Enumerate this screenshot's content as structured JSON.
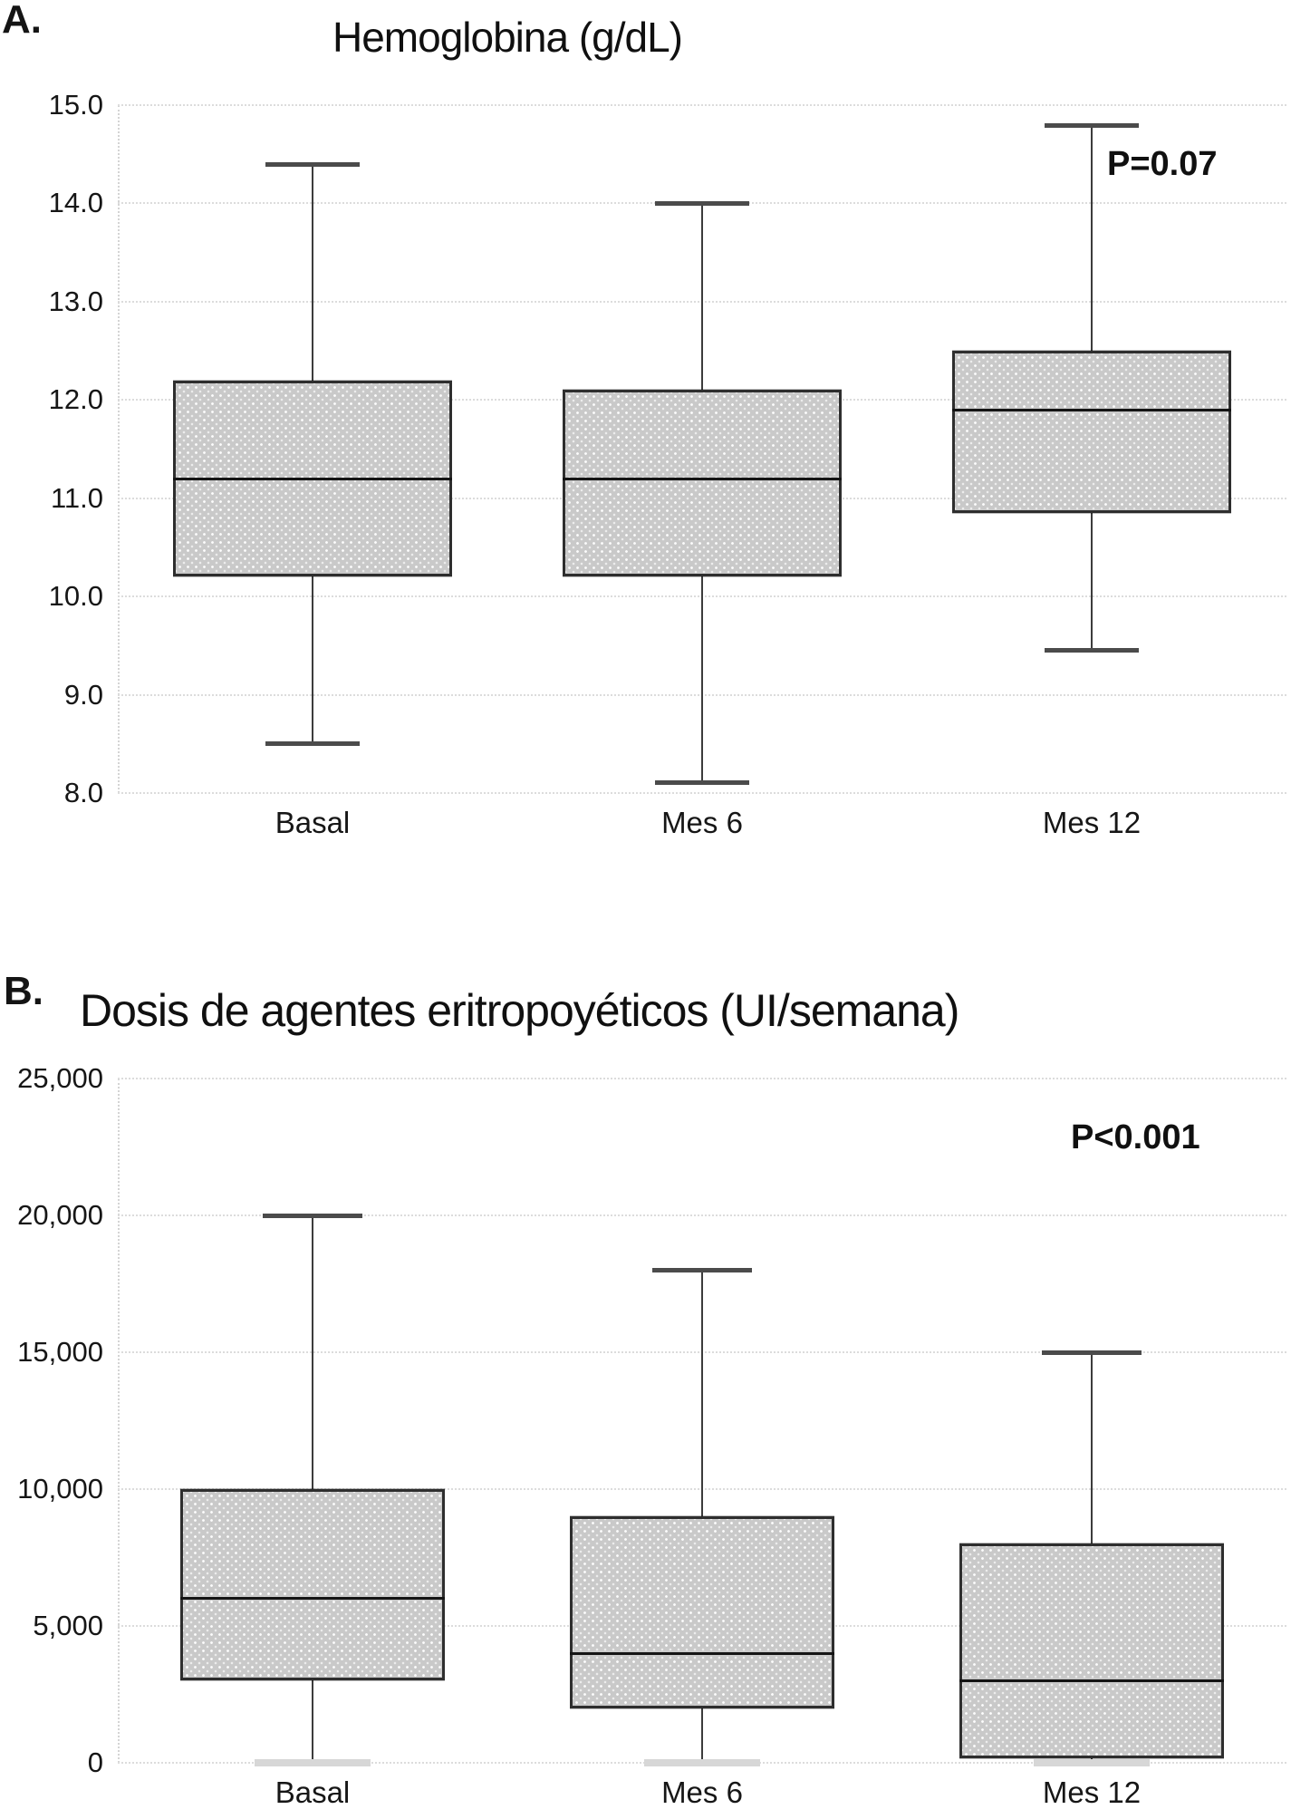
{
  "figure": {
    "panels": [
      {
        "letter": "A.",
        "annotation": "P=0.07"
      },
      {
        "letter": "B.",
        "annotation": "P<0.001"
      }
    ]
  },
  "colors": {
    "box_fill": "#c9c9c9",
    "box_border": "#2e2e2e",
    "median_line": "#141414",
    "whisker": "#3c3c3c",
    "whisker_cap": "#4b4b4b",
    "whisker_cap_light": "#d7d7d7",
    "gridline": "#dcdcdc",
    "text": "#161616",
    "background": "#ffffff"
  },
  "chart_data": [
    {
      "type": "box",
      "title": "Hemoglobina (g/dL)",
      "annotation": "P=0.07",
      "xlabel": "",
      "ylabel": "",
      "ylim": [
        8.0,
        15.0
      ],
      "grid": true,
      "legend": "none",
      "yticks": [
        {
          "value": 15.0,
          "label": "15.0"
        },
        {
          "value": 14.0,
          "label": "14.0"
        },
        {
          "value": 13.0,
          "label": "13.0"
        },
        {
          "value": 12.0,
          "label": "12.0"
        },
        {
          "value": 11.0,
          "label": "11.0"
        },
        {
          "value": 10.0,
          "label": "10.0"
        },
        {
          "value": 9.0,
          "label": "9.0"
        },
        {
          "value": 8.0,
          "label": "8.0"
        }
      ],
      "categories": [
        "Basal",
        "Mes 6",
        "Mes 12"
      ],
      "series": [
        {
          "category": "Basal",
          "min": 8.5,
          "q1": 10.2,
          "median": 11.2,
          "q3": 12.2,
          "max": 14.4
        },
        {
          "category": "Mes 6",
          "min": 8.1,
          "q1": 10.2,
          "median": 11.2,
          "q3": 12.1,
          "max": 14.0
        },
        {
          "category": "Mes 12",
          "min": 9.45,
          "q1": 10.85,
          "median": 11.9,
          "q3": 12.5,
          "max": 14.8
        }
      ]
    },
    {
      "type": "box",
      "title": "Dosis de agentes eritropoyéticos (UI/semana)",
      "annotation": "P<0.001",
      "xlabel": "",
      "ylabel": "",
      "ylim": [
        0,
        25000
      ],
      "grid": true,
      "legend": "none",
      "yticks": [
        {
          "value": 25000,
          "label": "25,000"
        },
        {
          "value": 20000,
          "label": "20,000"
        },
        {
          "value": 15000,
          "label": "15,000"
        },
        {
          "value": 10000,
          "label": "10,000"
        },
        {
          "value": 5000,
          "label": "5,000"
        },
        {
          "value": 0,
          "label": "0"
        }
      ],
      "categories": [
        "Basal",
        "Mes 6",
        "Mes 12"
      ],
      "series": [
        {
          "category": "Basal",
          "min": 0,
          "q1": 3000,
          "median": 6000,
          "q3": 10000,
          "max": 20000,
          "min_cap": "light"
        },
        {
          "category": "Mes 6",
          "min": 0,
          "q1": 2000,
          "median": 4000,
          "q3": 9000,
          "max": 18000,
          "min_cap": "light"
        },
        {
          "category": "Mes 12",
          "min": 0,
          "q1": 150,
          "median": 3000,
          "q3": 8000,
          "max": 15000,
          "min_cap": "light"
        }
      ]
    }
  ]
}
